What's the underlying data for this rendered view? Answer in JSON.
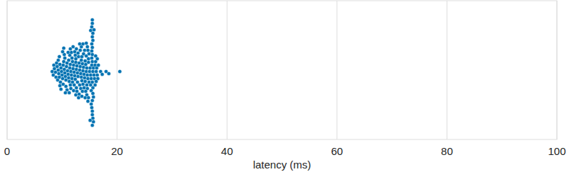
{
  "chart_data": {
    "type": "swarm",
    "x_label": "latency (ms)",
    "color": "#0072b2",
    "xlim": [
      0,
      100
    ],
    "xticks": [
      0,
      20,
      40,
      60,
      80,
      100
    ],
    "grid": true,
    "values": [
      8.2,
      8.4,
      8.6,
      8.8,
      8.9,
      8.5,
      9.0,
      9.1,
      9.2,
      9.3,
      9.4,
      9.5,
      9.6,
      9.7,
      9.8,
      9.9,
      9.3,
      9.6,
      9.5,
      9.8,
      10.0,
      10.1,
      10.2,
      10.3,
      10.4,
      10.5,
      10.6,
      10.7,
      10.8,
      10.9,
      10.2,
      10.5,
      10.7,
      10.4,
      10.9,
      10.1,
      10.6,
      10.3,
      11.0,
      11.1,
      11.2,
      11.3,
      11.4,
      11.5,
      11.6,
      11.7,
      11.8,
      11.9,
      11.2,
      11.5,
      11.8,
      11.4,
      11.6,
      11.1,
      11.9,
      11.3,
      11.7,
      11.5,
      12.0,
      12.1,
      12.2,
      12.3,
      12.4,
      12.5,
      12.6,
      12.7,
      12.8,
      12.9,
      12.2,
      12.5,
      12.8,
      12.4,
      12.6,
      12.1,
      12.9,
      12.3,
      12.7,
      12.5,
      12.0,
      12.6,
      13.0,
      13.1,
      13.2,
      13.3,
      13.4,
      13.5,
      13.6,
      13.7,
      13.8,
      13.9,
      13.2,
      13.5,
      13.8,
      13.4,
      13.6,
      13.1,
      13.9,
      13.3,
      13.7,
      13.5,
      13.0,
      13.6,
      13.2,
      13.8,
      14.0,
      14.1,
      14.2,
      14.3,
      14.4,
      14.5,
      14.6,
      14.7,
      14.8,
      14.9,
      14.2,
      14.5,
      14.8,
      14.4,
      14.6,
      14.1,
      14.9,
      14.3,
      14.7,
      14.5,
      14.0,
      14.6,
      14.2,
      14.8,
      14.4,
      14.7,
      15.0,
      15.1,
      15.2,
      15.3,
      15.4,
      15.5,
      15.6,
      15.7,
      15.8,
      15.9,
      15.2,
      15.4,
      15.5,
      15.6,
      15.3,
      15.5,
      15.4,
      15.6,
      15.5,
      15.7,
      15.4,
      15.5,
      15.6,
      15.3,
      15.5,
      15.4,
      15.6,
      15.5,
      15.2,
      15.5,
      15.4,
      15.6,
      15.5,
      15.7,
      15.5,
      15.8,
      15.1,
      15.5,
      16.0,
      16.1,
      16.2,
      16.3,
      16.4,
      16.5,
      16.6,
      16.2,
      16.0,
      16.4,
      16.1,
      17.0,
      17.3,
      18.0,
      18.5,
      20.5
    ]
  }
}
